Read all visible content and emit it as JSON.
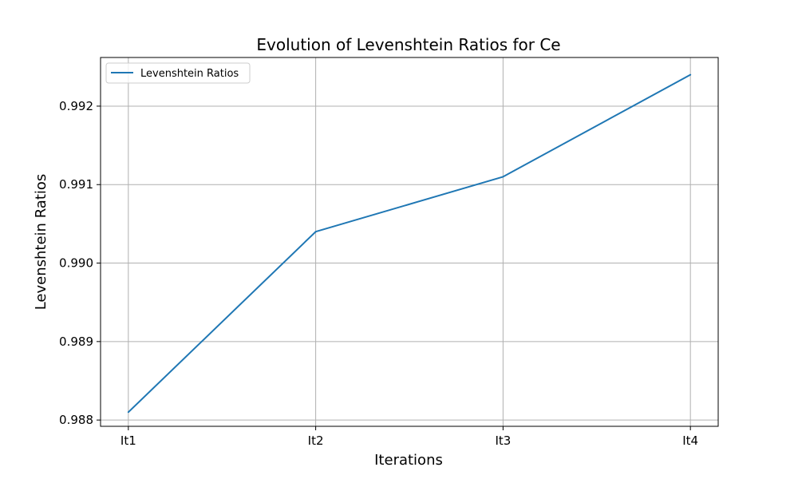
{
  "chart_data": {
    "type": "line",
    "title": "Evolution of Levenshtein Ratios for Ce",
    "xlabel": "Iterations",
    "ylabel": "Levenshtein Ratios",
    "categories": [
      "It1",
      "It2",
      "It3",
      "It4"
    ],
    "series": [
      {
        "name": "Levenshtein Ratios",
        "color": "#1f77b4",
        "values": [
          0.9881,
          0.9904,
          0.9911,
          0.9924
        ]
      }
    ],
    "ylim": [
      0.98792,
      0.99262
    ],
    "yticks": [
      0.988,
      0.989,
      0.99,
      0.991,
      0.992
    ],
    "ytick_labels": [
      "0.988",
      "0.989",
      "0.990",
      "0.991",
      "0.992"
    ],
    "grid": true,
    "legend_position": "upper-left"
  }
}
